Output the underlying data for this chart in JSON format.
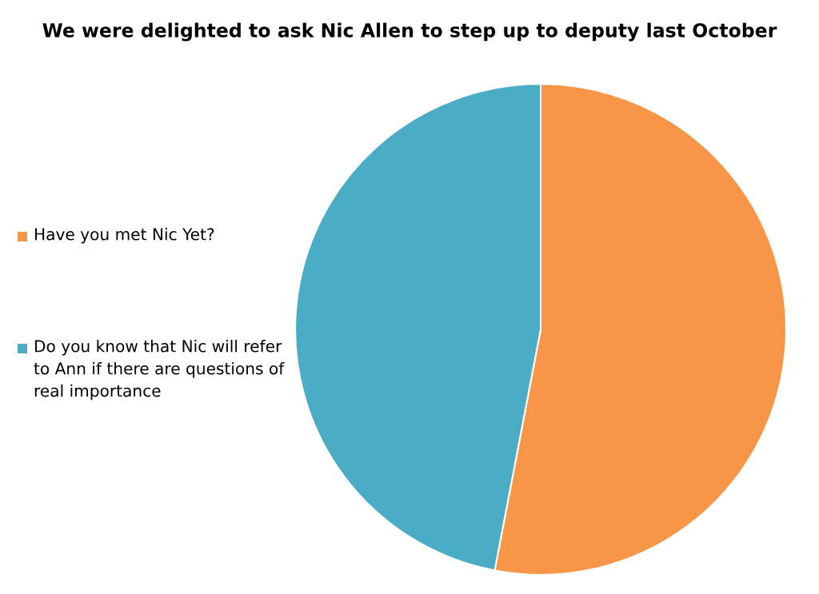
{
  "chart_data": {
    "type": "pie",
    "title": "We were delighted to ask Nic Allen to step up to deputy last October",
    "categories": [
      "Have you met Nic Yet?",
      "Do you know that Nic will refer to Ann if there are questions of real importance"
    ],
    "values": [
      53,
      47
    ],
    "colors": [
      "#f79646",
      "#4bacc6"
    ],
    "legend": "left"
  }
}
